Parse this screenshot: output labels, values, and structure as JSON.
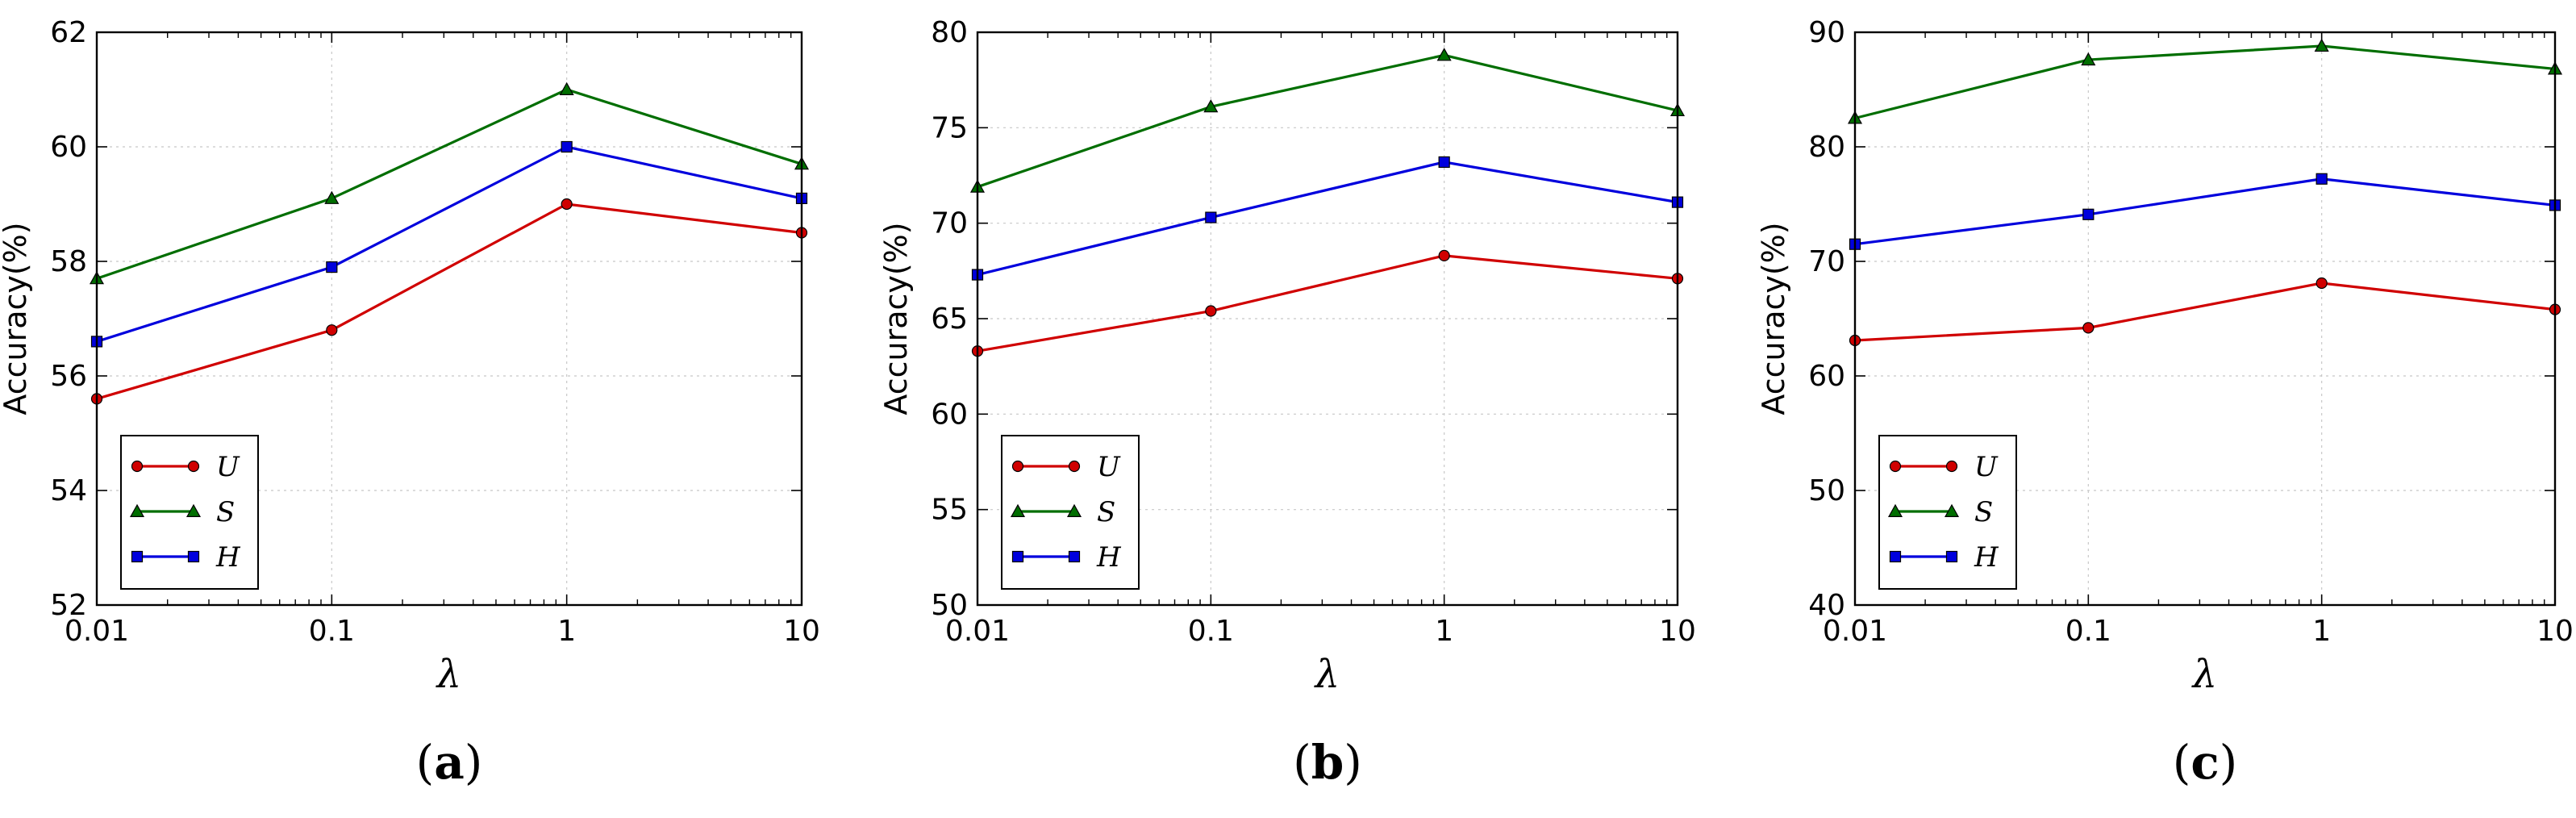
{
  "chart_data": [
    {
      "type": "line",
      "caption": "(a)",
      "caption_letter": "a",
      "xlabel": "λ",
      "ylabel": "Accuracy(%)",
      "x_scale": "log",
      "categories": [
        "0.01",
        "0.1",
        "1",
        "10"
      ],
      "x": [
        0.01,
        0.1,
        1,
        10
      ],
      "ylim": [
        52,
        62
      ],
      "yticks": [
        52,
        54,
        56,
        58,
        60,
        62
      ],
      "grid": true,
      "legend_position": "lower-left",
      "series": [
        {
          "name": "U",
          "color": "#d00000",
          "marker": "circle",
          "values": [
            55.6,
            56.8,
            59.0,
            58.5
          ]
        },
        {
          "name": "S",
          "color": "#006e00",
          "marker": "triangle",
          "values": [
            57.7,
            59.1,
            61.0,
            59.7
          ]
        },
        {
          "name": "H",
          "color": "#0000dd",
          "marker": "square",
          "values": [
            56.6,
            57.9,
            60.0,
            59.1
          ]
        }
      ]
    },
    {
      "type": "line",
      "caption": "(b)",
      "caption_letter": "b",
      "xlabel": "λ",
      "ylabel": "Accuracy(%)",
      "x_scale": "log",
      "categories": [
        "0.01",
        "0.1",
        "1",
        "10"
      ],
      "x": [
        0.01,
        0.1,
        1,
        10
      ],
      "ylim": [
        50,
        80
      ],
      "yticks": [
        50,
        55,
        60,
        65,
        70,
        75,
        80
      ],
      "grid": true,
      "legend_position": "lower-left",
      "series": [
        {
          "name": "U",
          "color": "#d00000",
          "marker": "circle",
          "values": [
            63.3,
            65.4,
            68.3,
            67.1
          ]
        },
        {
          "name": "S",
          "color": "#006e00",
          "marker": "triangle",
          "values": [
            71.9,
            76.1,
            78.8,
            75.9
          ]
        },
        {
          "name": "H",
          "color": "#0000dd",
          "marker": "square",
          "values": [
            67.3,
            70.3,
            73.2,
            71.1
          ]
        }
      ]
    },
    {
      "type": "line",
      "caption": "(c)",
      "caption_letter": "c",
      "xlabel": "λ",
      "ylabel": "Accuracy(%)",
      "x_scale": "log",
      "categories": [
        "0.01",
        "0.1",
        "1",
        "10"
      ],
      "x": [
        0.01,
        0.1,
        1,
        10
      ],
      "ylim": [
        40,
        90
      ],
      "yticks": [
        40,
        50,
        60,
        70,
        80,
        90
      ],
      "grid": true,
      "legend_position": "lower-left",
      "series": [
        {
          "name": "U",
          "color": "#d00000",
          "marker": "circle",
          "values": [
            63.1,
            64.2,
            68.1,
            65.8
          ]
        },
        {
          "name": "S",
          "color": "#006e00",
          "marker": "triangle",
          "values": [
            82.5,
            87.6,
            88.8,
            86.8
          ]
        },
        {
          "name": "H",
          "color": "#0000dd",
          "marker": "square",
          "values": [
            71.5,
            74.1,
            77.2,
            74.9
          ]
        }
      ]
    }
  ]
}
